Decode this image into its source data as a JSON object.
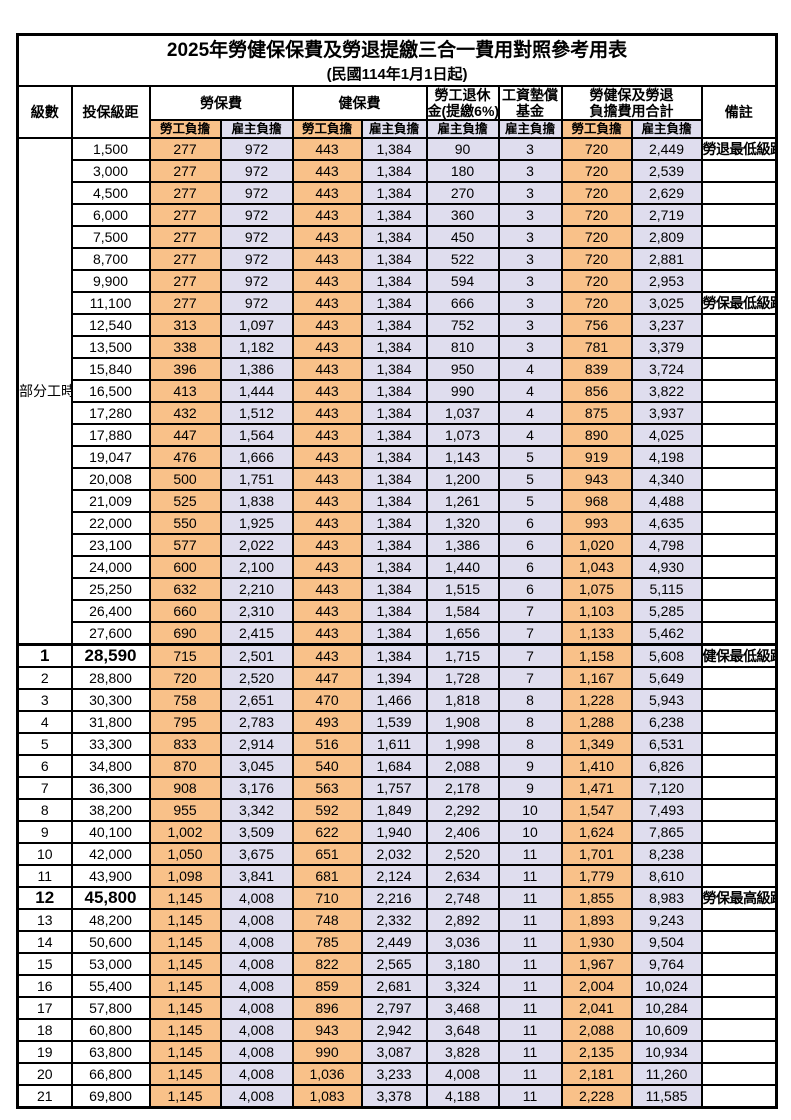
{
  "title": "2025年勞健保保費及勞退提繳三合一費用對照參考用表",
  "subtitle": "(民國114年1月1日起)",
  "header": {
    "level": "級數",
    "bracket": "投保級距",
    "labor_group": "勞保費",
    "health_group": "健保費",
    "pension_line1": "勞工退休",
    "pension_line2": "金(提繳6%)",
    "wage_fund_line1": "工資墊償",
    "wage_fund_line2": "基金",
    "total_line1": "勞健保及勞退",
    "total_line2": "負擔費用合計",
    "note": "備註",
    "employee": "勞工負擔",
    "employer": "雇主負擔"
  },
  "part_time_label": "部分工時",
  "part_time_rowspan": 23,
  "colors": {
    "employee_column_bg": "#f9c189",
    "employer_column_bg": "#dfddee",
    "highlight_text": "#ef4545",
    "note_text": "#f25050",
    "grid": "#000000"
  },
  "rows": [
    {
      "bracket": "1,500",
      "v": [
        "277",
        "972",
        "443",
        "1,384",
        "90",
        "3",
        "720",
        "2,449"
      ],
      "note": "勞退最低級距",
      "red": true
    },
    {
      "bracket": "3,000",
      "v": [
        "277",
        "972",
        "443",
        "1,384",
        "180",
        "3",
        "720",
        "2,539"
      ]
    },
    {
      "bracket": "4,500",
      "v": [
        "277",
        "972",
        "443",
        "1,384",
        "270",
        "3",
        "720",
        "2,629"
      ]
    },
    {
      "bracket": "6,000",
      "v": [
        "277",
        "972",
        "443",
        "1,384",
        "360",
        "3",
        "720",
        "2,719"
      ]
    },
    {
      "bracket": "7,500",
      "v": [
        "277",
        "972",
        "443",
        "1,384",
        "450",
        "3",
        "720",
        "2,809"
      ]
    },
    {
      "bracket": "8,700",
      "v": [
        "277",
        "972",
        "443",
        "1,384",
        "522",
        "3",
        "720",
        "2,881"
      ]
    },
    {
      "bracket": "9,900",
      "v": [
        "277",
        "972",
        "443",
        "1,384",
        "594",
        "3",
        "720",
        "2,953"
      ]
    },
    {
      "bracket": "11,100",
      "v": [
        "277",
        "972",
        "443",
        "1,384",
        "666",
        "3",
        "720",
        "3,025"
      ],
      "note": "勞保最低級距",
      "red": true
    },
    {
      "bracket": "12,540",
      "v": [
        "313",
        "1,097",
        "443",
        "1,384",
        "752",
        "3",
        "756",
        "3,237"
      ]
    },
    {
      "bracket": "13,500",
      "v": [
        "338",
        "1,182",
        "443",
        "1,384",
        "810",
        "3",
        "781",
        "3,379"
      ]
    },
    {
      "bracket": "15,840",
      "v": [
        "396",
        "1,386",
        "443",
        "1,384",
        "950",
        "4",
        "839",
        "3,724"
      ]
    },
    {
      "bracket": "16,500",
      "v": [
        "413",
        "1,444",
        "443",
        "1,384",
        "990",
        "4",
        "856",
        "3,822"
      ]
    },
    {
      "bracket": "17,280",
      "v": [
        "432",
        "1,512",
        "443",
        "1,384",
        "1,037",
        "4",
        "875",
        "3,937"
      ]
    },
    {
      "bracket": "17,880",
      "v": [
        "447",
        "1,564",
        "443",
        "1,384",
        "1,073",
        "4",
        "890",
        "4,025"
      ]
    },
    {
      "bracket": "19,047",
      "v": [
        "476",
        "1,666",
        "443",
        "1,384",
        "1,143",
        "5",
        "919",
        "4,198"
      ]
    },
    {
      "bracket": "20,008",
      "v": [
        "500",
        "1,751",
        "443",
        "1,384",
        "1,200",
        "5",
        "943",
        "4,340"
      ]
    },
    {
      "bracket": "21,009",
      "v": [
        "525",
        "1,838",
        "443",
        "1,384",
        "1,261",
        "5",
        "968",
        "4,488"
      ]
    },
    {
      "bracket": "22,000",
      "v": [
        "550",
        "1,925",
        "443",
        "1,384",
        "1,320",
        "6",
        "993",
        "4,635"
      ]
    },
    {
      "bracket": "23,100",
      "v": [
        "577",
        "2,022",
        "443",
        "1,384",
        "1,386",
        "6",
        "1,020",
        "4,798"
      ]
    },
    {
      "bracket": "24,000",
      "v": [
        "600",
        "2,100",
        "443",
        "1,384",
        "1,440",
        "6",
        "1,043",
        "4,930"
      ]
    },
    {
      "bracket": "25,250",
      "v": [
        "632",
        "2,210",
        "443",
        "1,384",
        "1,515",
        "6",
        "1,075",
        "5,115"
      ]
    },
    {
      "bracket": "26,400",
      "v": [
        "660",
        "2,310",
        "443",
        "1,384",
        "1,584",
        "7",
        "1,103",
        "5,285"
      ]
    },
    {
      "bracket": "27,600",
      "v": [
        "690",
        "2,415",
        "443",
        "1,384",
        "1,656",
        "7",
        "1,133",
        "5,462"
      ]
    },
    {
      "level": "1",
      "bracket": "28,590",
      "v": [
        "715",
        "2,501",
        "443",
        "1,384",
        "1,715",
        "7",
        "1,158",
        "5,608"
      ],
      "note": "健保最低級距",
      "red": true,
      "big": true,
      "thick_top": true
    },
    {
      "level": "2",
      "bracket": "28,800",
      "v": [
        "720",
        "2,520",
        "447",
        "1,394",
        "1,728",
        "7",
        "1,167",
        "5,649"
      ]
    },
    {
      "level": "3",
      "bracket": "30,300",
      "v": [
        "758",
        "2,651",
        "470",
        "1,466",
        "1,818",
        "8",
        "1,228",
        "5,943"
      ]
    },
    {
      "level": "4",
      "bracket": "31,800",
      "v": [
        "795",
        "2,783",
        "493",
        "1,539",
        "1,908",
        "8",
        "1,288",
        "6,238"
      ]
    },
    {
      "level": "5",
      "bracket": "33,300",
      "v": [
        "833",
        "2,914",
        "516",
        "1,611",
        "1,998",
        "8",
        "1,349",
        "6,531"
      ]
    },
    {
      "level": "6",
      "bracket": "34,800",
      "v": [
        "870",
        "3,045",
        "540",
        "1,684",
        "2,088",
        "9",
        "1,410",
        "6,826"
      ]
    },
    {
      "level": "7",
      "bracket": "36,300",
      "v": [
        "908",
        "3,176",
        "563",
        "1,757",
        "2,178",
        "9",
        "1,471",
        "7,120"
      ]
    },
    {
      "level": "8",
      "bracket": "38,200",
      "v": [
        "955",
        "3,342",
        "592",
        "1,849",
        "2,292",
        "10",
        "1,547",
        "7,493"
      ]
    },
    {
      "level": "9",
      "bracket": "40,100",
      "v": [
        "1,002",
        "3,509",
        "622",
        "1,940",
        "2,406",
        "10",
        "1,624",
        "7,865"
      ]
    },
    {
      "level": "10",
      "bracket": "42,000",
      "v": [
        "1,050",
        "3,675",
        "651",
        "2,032",
        "2,520",
        "11",
        "1,701",
        "8,238"
      ]
    },
    {
      "level": "11",
      "bracket": "43,900",
      "v": [
        "1,098",
        "3,841",
        "681",
        "2,124",
        "2,634",
        "11",
        "1,779",
        "8,610"
      ]
    },
    {
      "level": "12",
      "bracket": "45,800",
      "v": [
        "1,145",
        "4,008",
        "710",
        "2,216",
        "2,748",
        "11",
        "1,855",
        "8,983"
      ],
      "note": "勞保最高級距",
      "red": true,
      "big": true
    },
    {
      "level": "13",
      "bracket": "48,200",
      "v": [
        "1,145",
        "4,008",
        "748",
        "2,332",
        "2,892",
        "11",
        "1,893",
        "9,243"
      ]
    },
    {
      "level": "14",
      "bracket": "50,600",
      "v": [
        "1,145",
        "4,008",
        "785",
        "2,449",
        "3,036",
        "11",
        "1,930",
        "9,504"
      ]
    },
    {
      "level": "15",
      "bracket": "53,000",
      "v": [
        "1,145",
        "4,008",
        "822",
        "2,565",
        "3,180",
        "11",
        "1,967",
        "9,764"
      ]
    },
    {
      "level": "16",
      "bracket": "55,400",
      "v": [
        "1,145",
        "4,008",
        "859",
        "2,681",
        "3,324",
        "11",
        "2,004",
        "10,024"
      ]
    },
    {
      "level": "17",
      "bracket": "57,800",
      "v": [
        "1,145",
        "4,008",
        "896",
        "2,797",
        "3,468",
        "11",
        "2,041",
        "10,284"
      ]
    },
    {
      "level": "18",
      "bracket": "60,800",
      "v": [
        "1,145",
        "4,008",
        "943",
        "2,942",
        "3,648",
        "11",
        "2,088",
        "10,609"
      ]
    },
    {
      "level": "19",
      "bracket": "63,800",
      "v": [
        "1,145",
        "4,008",
        "990",
        "3,087",
        "3,828",
        "11",
        "2,135",
        "10,934"
      ]
    },
    {
      "level": "20",
      "bracket": "66,800",
      "v": [
        "1,145",
        "4,008",
        "1,036",
        "3,233",
        "4,008",
        "11",
        "2,181",
        "11,260"
      ]
    },
    {
      "level": "21",
      "bracket": "69,800",
      "v": [
        "1,145",
        "4,008",
        "1,083",
        "3,378",
        "4,188",
        "11",
        "2,228",
        "11,585"
      ]
    }
  ]
}
